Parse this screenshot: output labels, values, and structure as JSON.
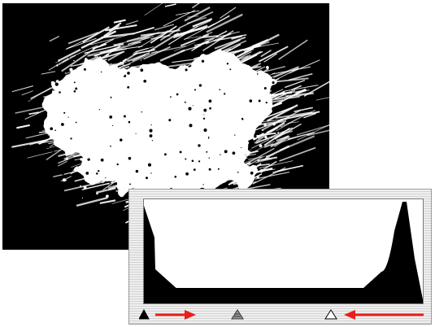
{
  "image_preview": {
    "description_icon": "photo-preview",
    "background_color": "#000000",
    "foreground_color": "#ffffff"
  },
  "levels_panel": {
    "histogram": {
      "fill_color": "#000000",
      "background_color": "#ffffff"
    },
    "sliders": {
      "black_point_icon": "black-triangle-icon",
      "gamma_icon": "gray-triangle-icon",
      "white_point_icon": "white-triangle-icon"
    },
    "annotation_arrows": {
      "color": "#e8201a",
      "left_arrow_direction": "right",
      "right_arrow_direction": "left"
    }
  }
}
